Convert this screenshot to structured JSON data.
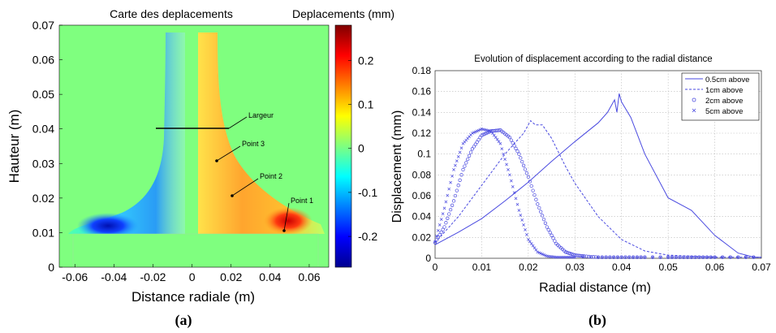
{
  "chart_data": [
    {
      "type": "heatmap",
      "panel_label": "(a)",
      "title": "Carte des deplacements",
      "colorbar_label": "Deplacements (mm)",
      "xlabel": "Distance radiale (m)",
      "ylabel": "Hauteur (m)",
      "xlim": [
        -0.068,
        0.07
      ],
      "ylim": [
        0,
        0.07
      ],
      "x_ticks": [
        -0.06,
        -0.04,
        -0.02,
        0,
        0.02,
        0.04,
        0.06
      ],
      "x_tick_labels": [
        "-0.06",
        "-0.04",
        "-0.02",
        "0",
        "0.02",
        "0.04",
        "0.06"
      ],
      "y_ticks": [
        0,
        0.01,
        0.02,
        0.03,
        0.04,
        0.05,
        0.06,
        0.07
      ],
      "y_tick_labels": [
        "0",
        "0.01",
        "0.02",
        "0.03",
        "0.04",
        "0.05",
        "0.06",
        "0.07"
      ],
      "colorbar_range": [
        -0.27,
        0.28
      ],
      "colorbar_ticks": [
        0.2,
        0.1,
        0,
        -0.1,
        -0.2
      ],
      "colorbar_tick_labels": [
        "0.2",
        "0.1",
        "0",
        "-0.1",
        "-0.2"
      ],
      "annotations": [
        {
          "text": "Largeur",
          "x": 0.028,
          "y": 0.0425,
          "line_from": [
            -0.012,
            0.04
          ],
          "line_to": [
            0.013,
            0.04
          ]
        },
        {
          "text": "Point 3",
          "x": 0.018,
          "y": 0.0355,
          "point": [
            0.01,
            0.03
          ]
        },
        {
          "text": "Point 2",
          "x": 0.026,
          "y": 0.0265,
          "point": [
            0.016,
            0.0205
          ]
        },
        {
          "text": "Point 1",
          "x": 0.049,
          "y": 0.0185,
          "point": [
            0.046,
            0.0105
          ]
        }
      ]
    },
    {
      "type": "line",
      "panel_label": "(b)",
      "title": "Evolution of displacement according to the radial distance",
      "xlabel": "Radial distance (m)",
      "ylabel": "Displacement (mm)",
      "xlim": [
        0,
        0.07
      ],
      "ylim": [
        0,
        0.18
      ],
      "x_ticks": [
        0,
        0.01,
        0.02,
        0.03,
        0.04,
        0.05,
        0.06,
        0.07
      ],
      "x_tick_labels": [
        "0",
        "0.01",
        "0.02",
        "0.03",
        "0.04",
        "0.05",
        "0.06",
        "0.07"
      ],
      "y_ticks": [
        0,
        0.02,
        0.04,
        0.06,
        0.08,
        0.1,
        0.12,
        0.14,
        0.16,
        0.18
      ],
      "y_tick_labels": [
        "0",
        "0.02",
        "0.04",
        "0.06",
        "0.08",
        "0.1",
        "0.12",
        "0.14",
        "0.16",
        "0.18"
      ],
      "grid": true,
      "legend_position": "top-right",
      "color": "#4a4ae0",
      "series": [
        {
          "name": "0.5cm above",
          "style": "solid",
          "x": [
            0,
            0.005,
            0.01,
            0.015,
            0.02,
            0.025,
            0.03,
            0.035,
            0.037,
            0.0385,
            0.039,
            0.0395,
            0.04,
            0.042,
            0.045,
            0.05,
            0.055,
            0.06,
            0.065,
            0.0685,
            0.07
          ],
          "y": [
            0.013,
            0.025,
            0.038,
            0.055,
            0.073,
            0.093,
            0.112,
            0.13,
            0.14,
            0.152,
            0.14,
            0.158,
            0.15,
            0.135,
            0.1,
            0.058,
            0.046,
            0.022,
            0.005,
            0.001,
            0.001
          ]
        },
        {
          "name": "1cm above",
          "style": "dashed",
          "x": [
            0,
            0.005,
            0.01,
            0.015,
            0.019,
            0.0205,
            0.0215,
            0.023,
            0.025,
            0.028,
            0.03,
            0.035,
            0.04,
            0.045,
            0.05,
            0.055,
            0.06,
            0.065,
            0.07
          ],
          "y": [
            0.015,
            0.04,
            0.07,
            0.1,
            0.12,
            0.132,
            0.128,
            0.128,
            0.115,
            0.088,
            0.072,
            0.04,
            0.018,
            0.007,
            0.003,
            0.002,
            0.001,
            0.001,
            0.001
          ]
        },
        {
          "name": "2cm above",
          "style": "circle",
          "x": [
            0,
            0.002,
            0.004,
            0.006,
            0.008,
            0.01,
            0.012,
            0.014,
            0.016,
            0.018,
            0.02,
            0.022,
            0.024,
            0.026,
            0.028,
            0.03,
            0.032,
            0.035,
            0.04,
            0.045,
            0.05,
            0.055,
            0.06,
            0.065,
            0.07
          ],
          "y": [
            0.015,
            0.03,
            0.055,
            0.085,
            0.105,
            0.118,
            0.122,
            0.123,
            0.116,
            0.1,
            0.078,
            0.052,
            0.03,
            0.014,
            0.006,
            0.003,
            0.002,
            0.001,
            0.001,
            0.001,
            0.001,
            0.001,
            0.001,
            0.001,
            0.001
          ]
        },
        {
          "name": "5cm above",
          "style": "cross",
          "x": [
            0,
            0.002,
            0.004,
            0.006,
            0.008,
            0.01,
            0.012,
            0.014,
            0.016,
            0.018,
            0.02,
            0.022,
            0.024,
            0.026,
            0.028,
            0.03,
            0.035,
            0.04,
            0.045,
            0.05,
            0.055,
            0.06,
            0.065,
            0.07
          ],
          "y": [
            0.016,
            0.048,
            0.085,
            0.11,
            0.12,
            0.124,
            0.122,
            0.11,
            0.08,
            0.046,
            0.018,
            0.006,
            0.002,
            0.001,
            0.001,
            0.001,
            0.001,
            0.001,
            0.001,
            0.001,
            0.001,
            0.001,
            0.001,
            0.001
          ]
        }
      ]
    }
  ]
}
